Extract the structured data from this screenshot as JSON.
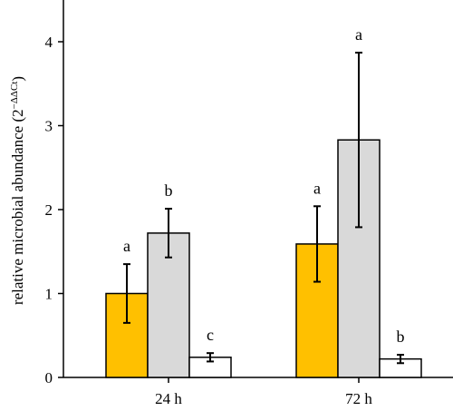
{
  "chart_data": {
    "type": "bar",
    "title": "",
    "xlabel": "",
    "ylabel": "relative microbial abundance (2",
    "ylabel_superscript": "−ΔΔCt",
    "ylabel_close": ")",
    "ylim": [
      0,
      4.5
    ],
    "yticks": [
      "0",
      "1",
      "2",
      "3",
      "4"
    ],
    "categories": [
      "24 h",
      "72 h"
    ],
    "series": [
      {
        "color": "#FFC000",
        "values": [
          1.0,
          1.59
        ],
        "errors": [
          0.35,
          0.45
        ],
        "sig_labels": [
          "a",
          "a"
        ]
      },
      {
        "color": "#D9D9D9",
        "values": [
          1.72,
          2.83
        ],
        "errors": [
          0.29,
          1.04
        ],
        "sig_labels": [
          "b",
          "a"
        ]
      },
      {
        "color": "#FFFFFF",
        "values": [
          0.24,
          0.22
        ],
        "errors": [
          0.05,
          0.05
        ],
        "sig_labels": [
          "c",
          "b"
        ]
      }
    ],
    "grid": false,
    "legend": "none"
  }
}
